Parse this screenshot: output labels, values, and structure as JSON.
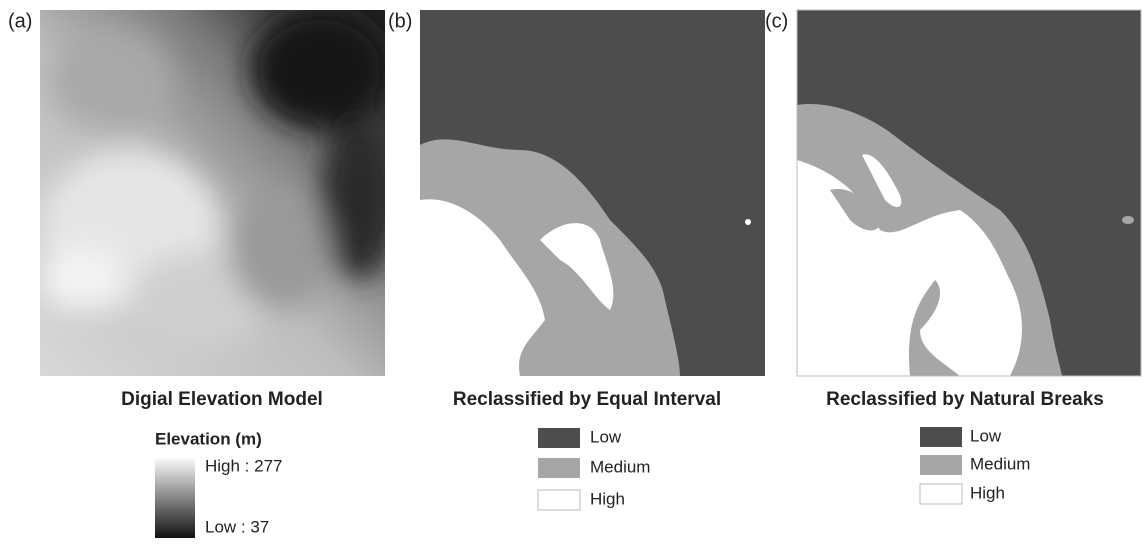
{
  "panels": [
    {
      "label": "(a)",
      "title": "Digial Elevation Model",
      "legend": {
        "title": "Elevation (m)",
        "high": "High : 277",
        "low": "Low : 37"
      }
    },
    {
      "label": "(b)",
      "title": "Reclassified by Equal Interval",
      "legend": [
        "Low",
        "Medium",
        "High"
      ]
    },
    {
      "label": "(c)",
      "title": "Reclassified by Natural Breaks",
      "legend": [
        "Low",
        "Medium",
        "High"
      ]
    }
  ]
}
